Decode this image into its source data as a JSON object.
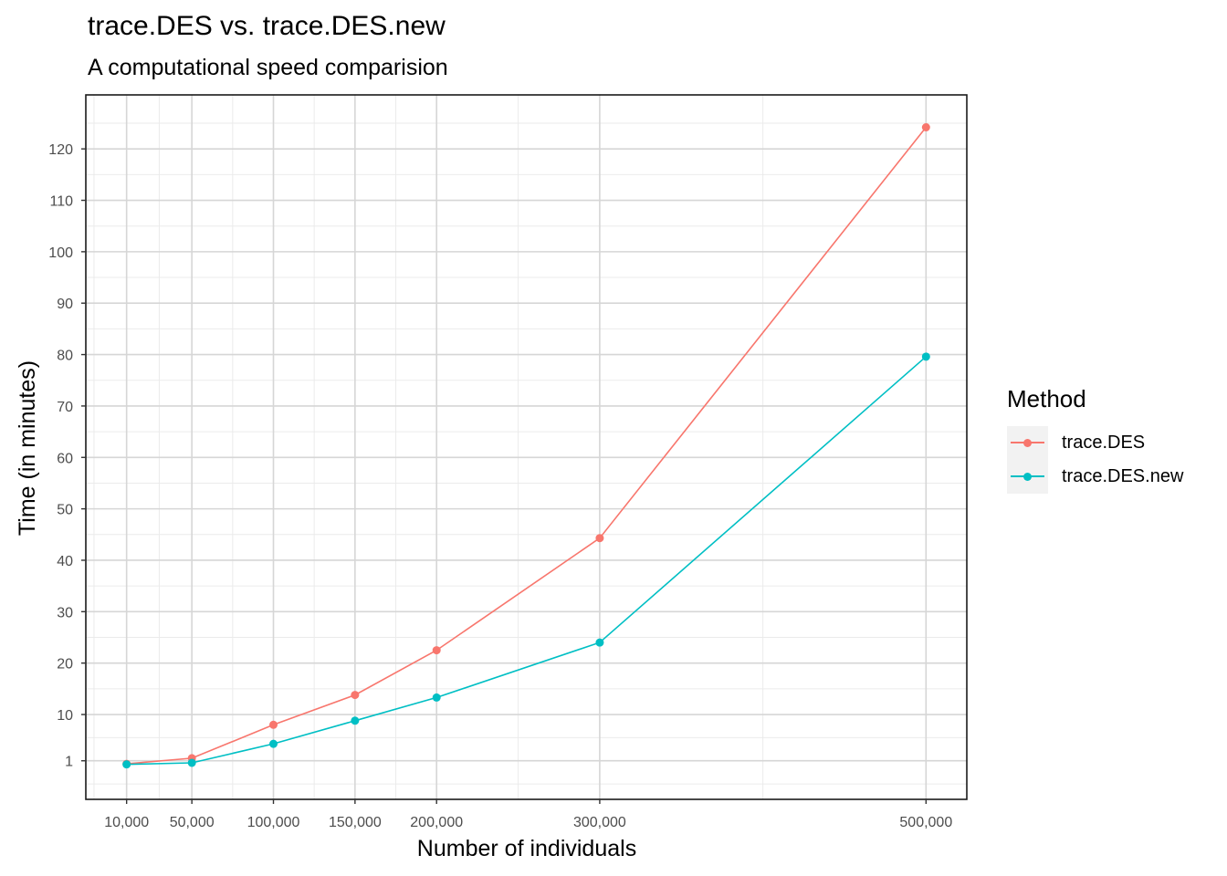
{
  "chart_data": {
    "type": "line",
    "title": "trace.DES vs. trace.DES.new",
    "subtitle": "A computational speed comparision",
    "xlabel": "Number of individuals",
    "ylabel": "Time (in minutes)",
    "x": [
      10000,
      50000,
      100000,
      150000,
      200000,
      300000,
      500000
    ],
    "x_tick_labels": [
      "10,000",
      "50,000",
      "100,000",
      "150,000",
      "200,000",
      "300,000",
      "500,000"
    ],
    "y_ticks": [
      1,
      10,
      20,
      30,
      40,
      50,
      60,
      70,
      80,
      90,
      100,
      110,
      120
    ],
    "xlim": [
      -15000,
      525000
    ],
    "ylim": [
      -6.5,
      130.5
    ],
    "grid": true,
    "legend_title": "Method",
    "legend_position": "right",
    "series": [
      {
        "name": "trace.DES",
        "color": "#F8766D",
        "values": [
          0.4,
          1.5,
          8.0,
          13.8,
          22.5,
          44.3,
          124.2
        ]
      },
      {
        "name": "trace.DES.new",
        "color": "#00BFC4",
        "values": [
          0.3,
          0.6,
          4.3,
          8.8,
          13.3,
          24.0,
          79.6
        ]
      }
    ]
  }
}
